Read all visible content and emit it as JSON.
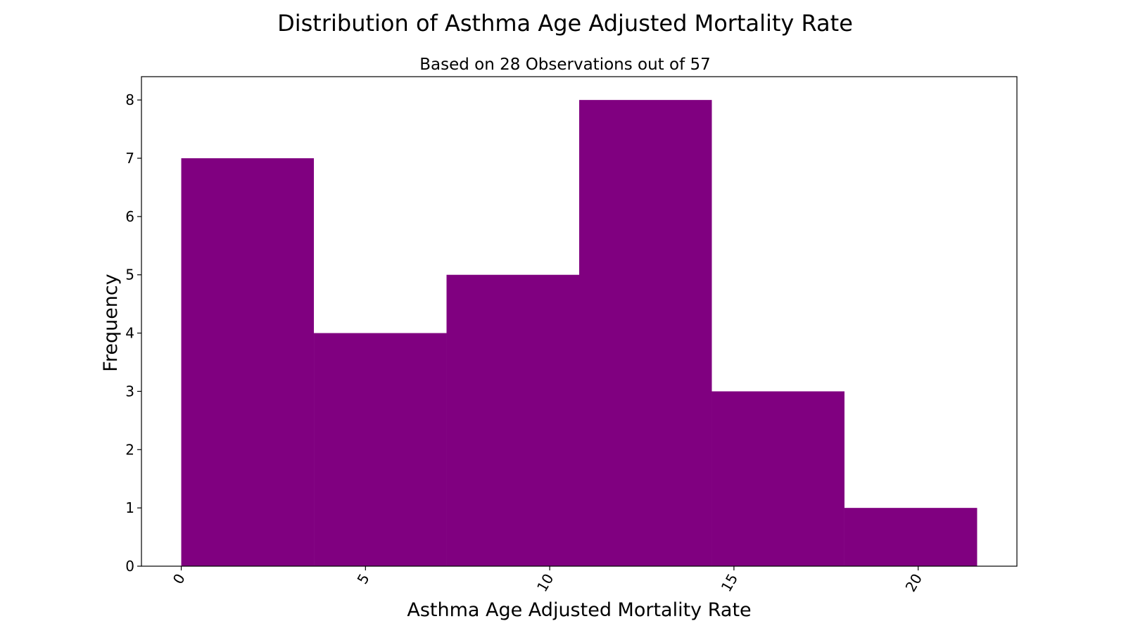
{
  "chart_data": {
    "type": "bar",
    "title": "Distribution of Asthma Age Adjusted Mortality Rate",
    "subtitle": "Based on 28 Observations out of 57",
    "xlabel": "Asthma Age Adjusted Mortality Rate",
    "ylabel": "Frequency",
    "bins": [
      {
        "start": 0.0,
        "end": 3.6,
        "count": 7
      },
      {
        "start": 3.6,
        "end": 7.2,
        "count": 4
      },
      {
        "start": 7.2,
        "end": 10.8,
        "count": 5
      },
      {
        "start": 10.8,
        "end": 14.4,
        "count": 8
      },
      {
        "start": 14.4,
        "end": 18.0,
        "count": 3
      },
      {
        "start": 18.0,
        "end": 21.6,
        "count": 1
      }
    ],
    "xlim": [
      -1.08,
      22.68
    ],
    "ylim": [
      0,
      8.4
    ],
    "xticks": [
      0,
      5,
      10,
      15,
      20
    ],
    "yticks": [
      0,
      1,
      2,
      3,
      4,
      5,
      6,
      7,
      8
    ],
    "bar_color": "#800080",
    "grid": false,
    "legend": false
  }
}
